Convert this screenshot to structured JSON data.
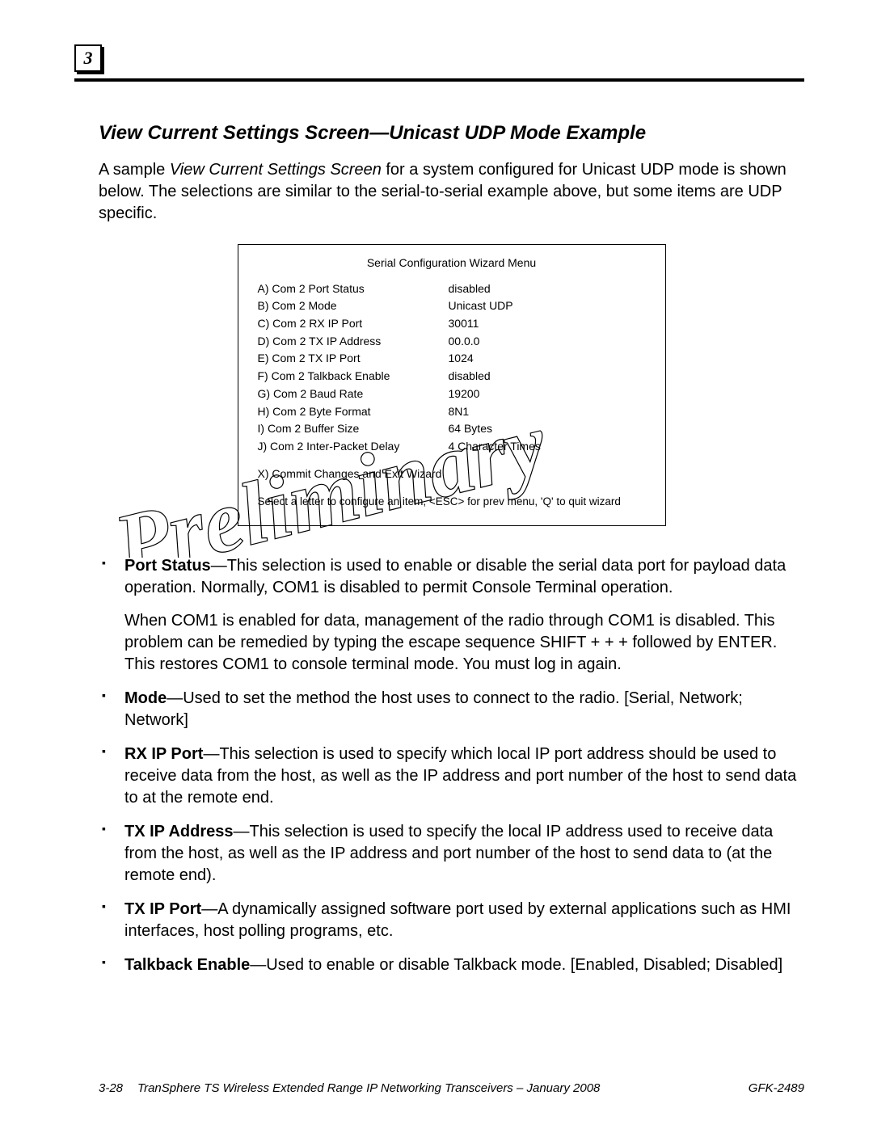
{
  "chapter_number": "3",
  "section_title": "View Current Settings Screen—Unicast UDP Mode Example",
  "intro": {
    "pre": "A sample ",
    "ital": "View Current Settings Screen",
    "post": " for a system configured for Unicast UDP mode is shown below. The selections are similar to the serial-to-serial example above, but some items are UDP specific."
  },
  "config": {
    "title": "Serial Configuration Wizard Menu",
    "rows": [
      {
        "label": "A) Com 2 Port Status",
        "value": "disabled"
      },
      {
        "label": "B) Com 2 Mode",
        "value": "Unicast UDP"
      },
      {
        "label": "C) Com 2 RX IP Port",
        "value": "30011"
      },
      {
        "label": "D) Com 2 TX IP Address",
        "value": "00.0.0"
      },
      {
        "label": "E) Com 2 TX IP Port",
        "value": "1024"
      },
      {
        "label": "F) Com 2 Talkback Enable",
        "value": "disabled"
      },
      {
        "label": "G) Com 2 Baud Rate",
        "value": "19200"
      },
      {
        "label": "H) Com 2 Byte Format",
        "value": "8N1"
      },
      {
        "label": "I) Com 2 Buffer Size",
        "value": "64 Bytes"
      },
      {
        "label": "J) Com 2 Inter-Packet Delay",
        "value": "4 Character Times"
      }
    ],
    "exit": "X) Commit Changes and Exit Wizard",
    "prompt": "Select a letter to configure an item, <ESC> for prev menu, 'Q' to quit wizard"
  },
  "watermark_text": "Preliminary",
  "bullets": [
    {
      "term": "Port Status",
      "body": "—This selection is used to enable or disable the serial data port for payload data operation. Normally, COM1 is disabled to permit Console Terminal operation.",
      "sub": "When COM1 is enabled for data, management of the radio through COM1 is disabled. This problem can be remedied by typing the escape sequence SHIFT + + + followed by ENTER. This restores COM1 to console terminal mode. You must log in again."
    },
    {
      "term": "Mode",
      "body": "—Used to set the method the host uses to connect to the radio. [Serial, Network; Network]"
    },
    {
      "term": "RX IP Port",
      "body": "—This selection is used to specify which local IP port address should be used to receive data from the host, as well as the IP address and port number of the host to send data to at the remote end."
    },
    {
      "term": "TX IP Address",
      "body": "—This selection is used to specify the local IP address used to receive data from the host, as well as the IP address and port number of the host to send data to (at the remote end)."
    },
    {
      "term": "TX IP Port",
      "body": "—A dynamically assigned software port used by external applications such as HMI interfaces, host polling programs, etc."
    },
    {
      "term": "Talkback Enable",
      "body": "—Used to enable or disable Talkback mode. [Enabled, Disabled; Disabled]"
    }
  ],
  "footer": {
    "page": "3-28",
    "title": "TranSphere TS Wireless Extended Range IP Networking Transceivers  –  January 2008",
    "doc": "GFK-2489"
  }
}
